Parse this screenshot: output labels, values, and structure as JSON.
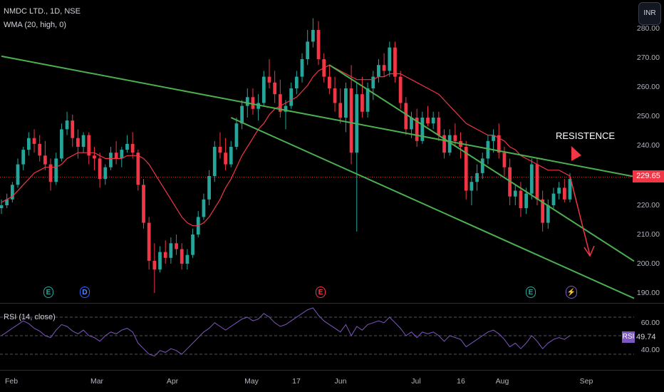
{
  "header": {
    "symbol_title": "NMDC LTD., 1D, NSE",
    "indicator_title": "WMA (20, high, 0)",
    "rsi_title": "RSI (14, close)",
    "currency_button": "INR"
  },
  "colors": {
    "up": "#26a69a",
    "down": "#f23645",
    "wma": "#f23645",
    "trendline": "#4caf50",
    "rsi": "#7e57c2",
    "background": "#000000"
  },
  "price_axis": {
    "ticks": [
      "280.00",
      "270.00",
      "260.00",
      "250.00",
      "240.00",
      "230.00",
      "220.00",
      "210.00",
      "200.00",
      "190.00"
    ],
    "current_price": "229.65"
  },
  "rsi_axis": {
    "ticks": [
      "60.00",
      "40.00"
    ],
    "tag": "RSI",
    "current": "49.74"
  },
  "time_axis": {
    "ticks": [
      "Feb",
      "Mar",
      "Apr",
      "May",
      "17",
      "Jun",
      "Jul",
      "16",
      "Aug",
      "Sep"
    ]
  },
  "events": [
    {
      "icon": "earnings-icon",
      "label": "E"
    },
    {
      "icon": "dividend-icon",
      "label": "D"
    },
    {
      "icon": "earnings-icon",
      "label": "E"
    },
    {
      "icon": "earnings-icon",
      "label": "E"
    },
    {
      "icon": "split-icon",
      "label": "⚡"
    }
  ],
  "annotation": {
    "text": "RESISTENCE"
  },
  "chart_data": {
    "type": "candlestick",
    "title": "NMDC LTD., 1D, NSE",
    "ylim": [
      190,
      282
    ],
    "rsi_ylim": [
      20,
      80
    ],
    "candles": [
      [
        219,
        222,
        217,
        220
      ],
      [
        220,
        224,
        219,
        222
      ],
      [
        222,
        228,
        221,
        227
      ],
      [
        227,
        236,
        226,
        234
      ],
      [
        234,
        240,
        232,
        239
      ],
      [
        239,
        245,
        237,
        243
      ],
      [
        243,
        246,
        238,
        241
      ],
      [
        241,
        244,
        235,
        237
      ],
      [
        237,
        242,
        232,
        234
      ],
      [
        234,
        236,
        225,
        228
      ],
      [
        228,
        238,
        227,
        236
      ],
      [
        236,
        248,
        235,
        246
      ],
      [
        246,
        252,
        244,
        249
      ],
      [
        249,
        251,
        240,
        243
      ],
      [
        243,
        246,
        236,
        240
      ],
      [
        240,
        245,
        238,
        244
      ],
      [
        244,
        245,
        234,
        237
      ],
      [
        237,
        240,
        232,
        236
      ],
      [
        236,
        238,
        226,
        229
      ],
      [
        229,
        234,
        227,
        233
      ],
      [
        233,
        240,
        232,
        238
      ],
      [
        238,
        242,
        234,
        236
      ],
      [
        236,
        240,
        233,
        239
      ],
      [
        239,
        244,
        238,
        241
      ],
      [
        241,
        245,
        236,
        238
      ],
      [
        238,
        239,
        225,
        227
      ],
      [
        227,
        229,
        212,
        214
      ],
      [
        214,
        216,
        198,
        201
      ],
      [
        201,
        207,
        190,
        198
      ],
      [
        198,
        206,
        197,
        204
      ],
      [
        204,
        208,
        200,
        202
      ],
      [
        202,
        209,
        200,
        207
      ],
      [
        207,
        210,
        203,
        205
      ],
      [
        205,
        207,
        198,
        200
      ],
      [
        200,
        205,
        198,
        203
      ],
      [
        203,
        212,
        202,
        210
      ],
      [
        210,
        218,
        209,
        216
      ],
      [
        216,
        224,
        215,
        222
      ],
      [
        222,
        232,
        220,
        230
      ],
      [
        230,
        242,
        228,
        240
      ],
      [
        240,
        245,
        236,
        238
      ],
      [
        238,
        243,
        232,
        234
      ],
      [
        234,
        242,
        233,
        240
      ],
      [
        240,
        250,
        239,
        248
      ],
      [
        248,
        256,
        246,
        254
      ],
      [
        254,
        260,
        250,
        257
      ],
      [
        257,
        260,
        251,
        253
      ],
      [
        253,
        258,
        249,
        255
      ],
      [
        255,
        266,
        254,
        264
      ],
      [
        264,
        270,
        260,
        262
      ],
      [
        262,
        266,
        255,
        258
      ],
      [
        258,
        263,
        250,
        252
      ],
      [
        252,
        256,
        246,
        254
      ],
      [
        254,
        262,
        253,
        260
      ],
      [
        260,
        266,
        258,
        264
      ],
      [
        264,
        272,
        262,
        270
      ],
      [
        270,
        280,
        268,
        276
      ],
      [
        276,
        284,
        274,
        280
      ],
      [
        280,
        283,
        268,
        270
      ],
      [
        270,
        272,
        262,
        264
      ],
      [
        264,
        268,
        258,
        260
      ],
      [
        260,
        264,
        252,
        255
      ],
      [
        255,
        260,
        248,
        250
      ],
      [
        250,
        262,
        245,
        260
      ],
      [
        260,
        268,
        234,
        238
      ],
      [
        238,
        262,
        211,
        258
      ],
      [
        258,
        264,
        250,
        252
      ],
      [
        252,
        262,
        250,
        260
      ],
      [
        260,
        266,
        256,
        264
      ],
      [
        264,
        270,
        262,
        268
      ],
      [
        268,
        272,
        264,
        266
      ],
      [
        266,
        276,
        264,
        274
      ],
      [
        274,
        276,
        262,
        264
      ],
      [
        264,
        266,
        253,
        255
      ],
      [
        255,
        257,
        244,
        246
      ],
      [
        246,
        252,
        243,
        250
      ],
      [
        250,
        253,
        240,
        242
      ],
      [
        242,
        252,
        241,
        250
      ],
      [
        250,
        254,
        247,
        248
      ],
      [
        248,
        252,
        246,
        250
      ],
      [
        250,
        252,
        242,
        244
      ],
      [
        244,
        246,
        236,
        238
      ],
      [
        238,
        246,
        237,
        244
      ],
      [
        244,
        248,
        240,
        242
      ],
      [
        242,
        245,
        236,
        240
      ],
      [
        240,
        242,
        222,
        225
      ],
      [
        225,
        230,
        220,
        228
      ],
      [
        228,
        234,
        225,
        231
      ],
      [
        231,
        238,
        229,
        236
      ],
      [
        236,
        244,
        234,
        242
      ],
      [
        242,
        246,
        238,
        244
      ],
      [
        244,
        248,
        236,
        238
      ],
      [
        238,
        240,
        230,
        233
      ],
      [
        233,
        236,
        220,
        223
      ],
      [
        223,
        227,
        220,
        225
      ],
      [
        225,
        228,
        216,
        219
      ],
      [
        219,
        226,
        217,
        224
      ],
      [
        224,
        236,
        222,
        234
      ],
      [
        234,
        236,
        220,
        222
      ],
      [
        222,
        225,
        211,
        214
      ],
      [
        214,
        222,
        212,
        220
      ],
      [
        220,
        226,
        219,
        224
      ],
      [
        224,
        228,
        222,
        226
      ],
      [
        226,
        229,
        221,
        222
      ],
      [
        222,
        231,
        221,
        229
      ]
    ],
    "wma": [
      221,
      222,
      223,
      225,
      227,
      229,
      231,
      232,
      233,
      233,
      233,
      234,
      236,
      237,
      238,
      238,
      238,
      238,
      237,
      236,
      236,
      236,
      236,
      237,
      237,
      237,
      236,
      234,
      231,
      228,
      225,
      222,
      219,
      216,
      214,
      213,
      213,
      214,
      216,
      219,
      222,
      226,
      229,
      233,
      237,
      240,
      243,
      246,
      248,
      251,
      253,
      254,
      255,
      256,
      257,
      259,
      261,
      264,
      266,
      267,
      268,
      267,
      266,
      265,
      264,
      263,
      263,
      263,
      263,
      264,
      264,
      265,
      265,
      265,
      264,
      263,
      262,
      261,
      260,
      259,
      258,
      256,
      254,
      252,
      250,
      248,
      247,
      246,
      245,
      244,
      244,
      243,
      242,
      240,
      239,
      237,
      236,
      235,
      234,
      233,
      232,
      232,
      232,
      231,
      230
    ],
    "rsi": [
      50,
      54,
      58,
      62,
      66,
      63,
      58,
      55,
      50,
      48,
      56,
      62,
      60,
      55,
      52,
      56,
      50,
      48,
      44,
      50,
      54,
      52,
      56,
      58,
      54,
      42,
      36,
      30,
      28,
      34,
      32,
      36,
      34,
      30,
      36,
      42,
      48,
      54,
      58,
      64,
      60,
      56,
      60,
      64,
      68,
      70,
      66,
      68,
      74,
      70,
      64,
      60,
      62,
      66,
      70,
      74,
      78,
      80,
      72,
      66,
      62,
      58,
      54,
      62,
      50,
      60,
      56,
      62,
      64,
      66,
      64,
      70,
      64,
      58,
      50,
      54,
      48,
      54,
      52,
      54,
      50,
      44,
      50,
      48,
      46,
      38,
      42,
      46,
      50,
      54,
      56,
      52,
      46,
      38,
      42,
      36,
      42,
      50,
      44,
      36,
      42,
      46,
      48,
      46,
      50
    ],
    "trendlines": [
      {
        "from": [
          0,
          271
        ],
        "to": [
          104,
          234
        ]
      },
      {
        "from": [
          60,
          268
        ],
        "to": [
          104,
          215
        ]
      },
      {
        "from": [
          42,
          250
        ],
        "to": [
          104,
          198
        ]
      }
    ],
    "current_price": 229.65,
    "rsi_levels": [
      70,
      50,
      30
    ]
  }
}
